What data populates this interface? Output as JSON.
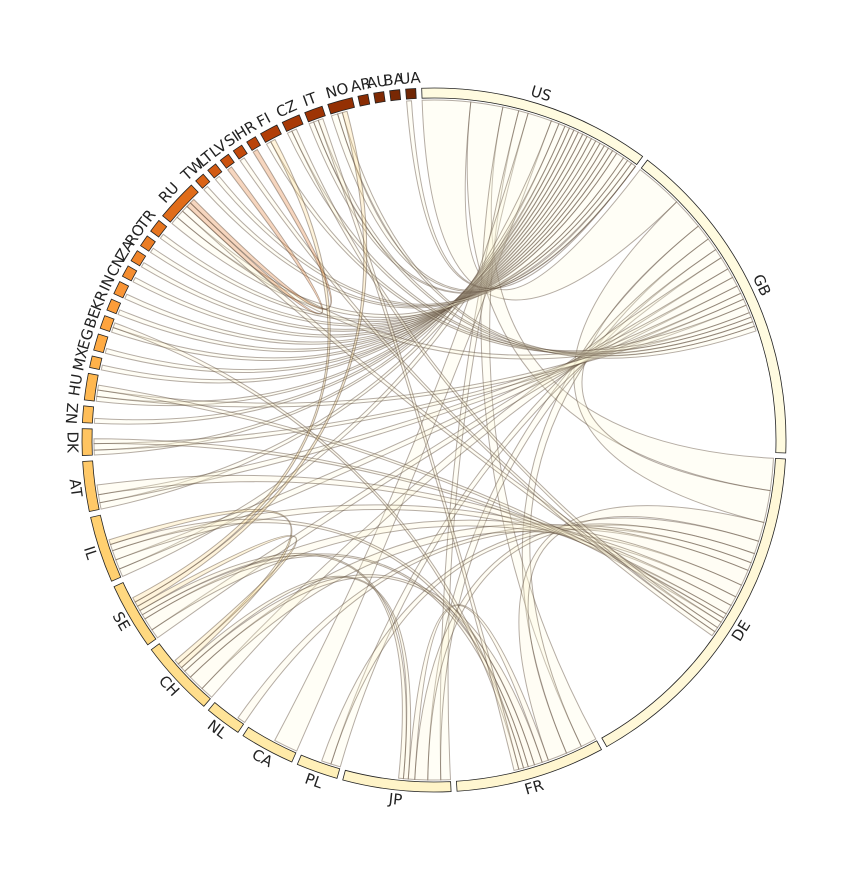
{
  "chart_data": {
    "type": "chord",
    "title": "",
    "nodes": [
      {
        "label": "US",
        "weight": 14,
        "color": "#fffbe0"
      },
      {
        "label": "GB",
        "weight": 20,
        "color": "#fffbe0"
      },
      {
        "label": "DE",
        "weight": 21,
        "color": "#fff8d8"
      },
      {
        "label": "FR",
        "weight": 9,
        "color": "#fff6d0"
      },
      {
        "label": "JP",
        "weight": 6.5,
        "color": "#fff4c8"
      },
      {
        "label": "PL",
        "weight": 2.5,
        "color": "#fff0b8"
      },
      {
        "label": "CA",
        "weight": 3.3,
        "color": "#ffeaa8"
      },
      {
        "label": "NL",
        "weight": 2.2,
        "color": "#ffe498"
      },
      {
        "label": "CH",
        "weight": 4.6,
        "color": "#ffde8c"
      },
      {
        "label": "SE",
        "weight": 4.0,
        "color": "#ffd880"
      },
      {
        "label": "IL",
        "weight": 4.0,
        "color": "#ffd070"
      },
      {
        "label": "AT",
        "weight": 3.0,
        "color": "#ffc968"
      },
      {
        "label": "DK",
        "weight": 1.6,
        "color": "#ffc460"
      },
      {
        "label": "NZ",
        "weight": 1.0,
        "color": "#ffbe58"
      },
      {
        "label": "HU",
        "weight": 1.6,
        "color": "#ffb850"
      },
      {
        "label": "MX",
        "weight": 0.7,
        "color": "#ffb24a"
      },
      {
        "label": "EG",
        "weight": 1.0,
        "color": "#ffab44"
      },
      {
        "label": "BE",
        "weight": 0.8,
        "color": "#ffa43e"
      },
      {
        "label": "KR",
        "weight": 0.7,
        "color": "#fc9d3a"
      },
      {
        "label": "IN",
        "weight": 0.8,
        "color": "#f99536"
      },
      {
        "label": "CN",
        "weight": 0.7,
        "color": "#f58d30"
      },
      {
        "label": "ZA",
        "weight": 0.7,
        "color": "#f0852a"
      },
      {
        "label": "RO",
        "weight": 0.7,
        "color": "#eb7d24"
      },
      {
        "label": "TR",
        "weight": 0.8,
        "color": "#e6751f"
      },
      {
        "label": "RU",
        "weight": 2.5,
        "color": "#e06c1a"
      },
      {
        "label": "TW",
        "weight": 0.6,
        "color": "#da6316"
      },
      {
        "label": "LT",
        "weight": 0.6,
        "color": "#d25a12"
      },
      {
        "label": "LV",
        "weight": 0.6,
        "color": "#ca520f"
      },
      {
        "label": "SI",
        "weight": 0.6,
        "color": "#c24a0c"
      },
      {
        "label": "HR",
        "weight": 0.6,
        "color": "#ba440a"
      },
      {
        "label": "FI",
        "weight": 1.1,
        "color": "#b13e08"
      },
      {
        "label": "CZ",
        "weight": 1.1,
        "color": "#a83906"
      },
      {
        "label": "IT",
        "weight": 1.1,
        "color": "#9e3405"
      },
      {
        "label": "NO",
        "weight": 1.5,
        "color": "#943004"
      },
      {
        "label": "AR",
        "weight": 0.6,
        "color": "#8a2d04"
      },
      {
        "label": "AU",
        "weight": 0.6,
        "color": "#802a04"
      },
      {
        "label": "BA",
        "weight": 0.6,
        "color": "#782804"
      },
      {
        "label": "UA",
        "weight": 0.6,
        "color": "#702604"
      }
    ],
    "chords": [
      {
        "source": "US",
        "target": "GB",
        "value": 3
      },
      {
        "source": "US",
        "target": "DE",
        "value": 2
      },
      {
        "source": "US",
        "target": "FR",
        "value": 1
      },
      {
        "source": "US",
        "target": "JP",
        "value": 0.6
      },
      {
        "source": "US",
        "target": "CA",
        "value": 1.5
      },
      {
        "source": "US",
        "target": "IL",
        "value": 0.5
      },
      {
        "source": "US",
        "target": "AT",
        "value": 0.4
      },
      {
        "source": "US",
        "target": "DK",
        "value": 0.3
      },
      {
        "source": "US",
        "target": "NZ",
        "value": 0.3
      },
      {
        "source": "US",
        "target": "HU",
        "value": 0.3
      },
      {
        "source": "US",
        "target": "MX",
        "value": 0.3
      },
      {
        "source": "US",
        "target": "EG",
        "value": 0.3
      },
      {
        "source": "US",
        "target": "BE",
        "value": 0.3
      },
      {
        "source": "US",
        "target": "KR",
        "value": 0.3
      },
      {
        "source": "US",
        "target": "IN",
        "value": 0.3
      },
      {
        "source": "US",
        "target": "CN",
        "value": 0.3
      },
      {
        "source": "US",
        "target": "ZA",
        "value": 0.3
      },
      {
        "source": "US",
        "target": "RO",
        "value": 0.3
      },
      {
        "source": "US",
        "target": "TR",
        "value": 0.3
      },
      {
        "source": "US",
        "target": "RU",
        "value": 0.5
      },
      {
        "source": "US",
        "target": "TW",
        "value": 0.3
      },
      {
        "source": "US",
        "target": "LT",
        "value": 0.3
      },
      {
        "source": "US",
        "target": "NO",
        "value": 0.4
      },
      {
        "source": "US",
        "target": "IT",
        "value": 0.3
      },
      {
        "source": "US",
        "target": "UA",
        "value": 0.3
      },
      {
        "source": "GB",
        "target": "DE",
        "value": 2
      },
      {
        "source": "GB",
        "target": "FR",
        "value": 1
      },
      {
        "source": "GB",
        "target": "JP",
        "value": 0.8
      },
      {
        "source": "GB",
        "target": "PL",
        "value": 0.6
      },
      {
        "source": "GB",
        "target": "CH",
        "value": 0.8
      },
      {
        "source": "GB",
        "target": "SE",
        "value": 0.6
      },
      {
        "source": "GB",
        "target": "IL",
        "value": 0.6
      },
      {
        "source": "GB",
        "target": "AT",
        "value": 0.5
      },
      {
        "source": "GB",
        "target": "DK",
        "value": 0.4
      },
      {
        "source": "GB",
        "target": "HU",
        "value": 0.4
      },
      {
        "source": "GB",
        "target": "RU",
        "value": 0.5
      },
      {
        "source": "GB",
        "target": "FI",
        "value": 0.3
      },
      {
        "source": "GB",
        "target": "CZ",
        "value": 0.3
      },
      {
        "source": "GB",
        "target": "IT",
        "value": 0.3
      },
      {
        "source": "GB",
        "target": "NO",
        "value": 0.3
      },
      {
        "source": "DE",
        "target": "FR",
        "value": 1.2
      },
      {
        "source": "DE",
        "target": "JP",
        "value": 0.8
      },
      {
        "source": "DE",
        "target": "PL",
        "value": 0.6
      },
      {
        "source": "DE",
        "target": "NL",
        "value": 0.5
      },
      {
        "source": "DE",
        "target": "CH",
        "value": 1
      },
      {
        "source": "DE",
        "target": "SE",
        "value": 0.8
      },
      {
        "source": "DE",
        "target": "IL",
        "value": 0.6
      },
      {
        "source": "DE",
        "target": "AT",
        "value": 0.6
      },
      {
        "source": "DE",
        "target": "DK",
        "value": 0.3
      },
      {
        "source": "DE",
        "target": "HU",
        "value": 0.3
      },
      {
        "source": "DE",
        "target": "RU",
        "value": 0.4
      },
      {
        "source": "DE",
        "target": "CZ",
        "value": 0.3
      },
      {
        "source": "DE",
        "target": "SI",
        "value": 0.3
      },
      {
        "source": "FR",
        "target": "JP",
        "value": 0.4
      },
      {
        "source": "FR",
        "target": "CH",
        "value": 0.5
      },
      {
        "source": "FR",
        "target": "IL",
        "value": 0.4
      },
      {
        "source": "FR",
        "target": "SE",
        "value": 0.3
      },
      {
        "source": "FR",
        "target": "BE",
        "value": 0.3
      },
      {
        "source": "FR",
        "target": "IT",
        "value": 0.3
      },
      {
        "source": "JP",
        "target": "CH",
        "value": 0.3
      },
      {
        "source": "JP",
        "target": "SE",
        "value": 0.3
      },
      {
        "source": "CH",
        "target": "IL",
        "value": 0.3
      },
      {
        "source": "CH",
        "target": "SE",
        "value": 0.3
      },
      {
        "source": "SE",
        "target": "NO",
        "value": 0.3
      },
      {
        "source": "SE",
        "target": "FI",
        "value": 0.3
      },
      {
        "source": "RU",
        "target": "LV",
        "value": 0.3
      },
      {
        "source": "RU",
        "target": "HR",
        "value": 0.3
      }
    ]
  }
}
